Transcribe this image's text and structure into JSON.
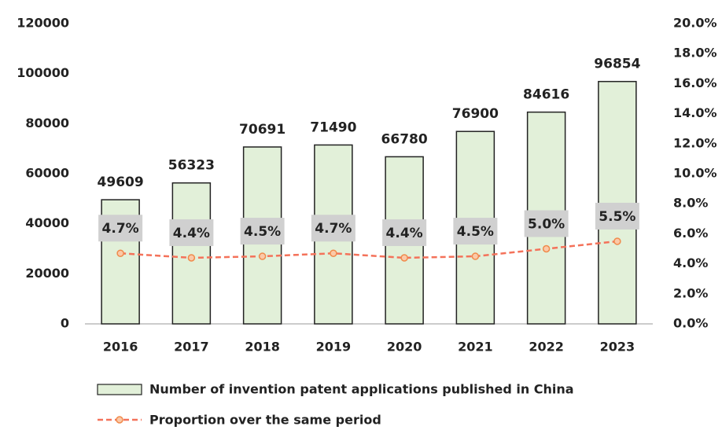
{
  "chart_data": {
    "type": "bar",
    "categories": [
      "2016",
      "2017",
      "2018",
      "2019",
      "2020",
      "2021",
      "2022",
      "2023"
    ],
    "series": [
      {
        "name": "Number of invention patent applications published in China",
        "type": "bar",
        "color": "#e2f0d9",
        "values": [
          49609,
          56323,
          70691,
          71490,
          66780,
          76900,
          84616,
          96854
        ]
      },
      {
        "name": "Proportion over the same period",
        "type": "line",
        "axis": "y2",
        "color": "#f4725a",
        "values": [
          4.7,
          4.4,
          4.5,
          4.7,
          4.4,
          4.5,
          5.0,
          5.5
        ],
        "value_labels": [
          "4.7%",
          "4.4%",
          "4.5%",
          "4.7%",
          "4.4%",
          "4.5%",
          "5.0%",
          "5.5%"
        ]
      }
    ],
    "ylim": [
      0,
      120000
    ],
    "yticks": [
      0,
      20000,
      40000,
      60000,
      80000,
      100000,
      120000
    ],
    "y2lim": [
      0,
      20
    ],
    "y2ticks": [
      {
        "value": 0,
        "label": "0.0%"
      },
      {
        "value": 2,
        "label": "2.0%"
      },
      {
        "value": 4,
        "label": "4.0%"
      },
      {
        "value": 6,
        "label": "6.0%"
      },
      {
        "value": 8,
        "label": "8.0%"
      },
      {
        "value": 10,
        "label": "10.0%"
      },
      {
        "value": 12,
        "label": "12.0%"
      },
      {
        "value": 14,
        "label": "14.0%"
      },
      {
        "value": 16,
        "label": "16.0%"
      },
      {
        "value": 18,
        "label": "18.0%"
      },
      {
        "value": 20,
        "label": "20.0%"
      }
    ]
  }
}
